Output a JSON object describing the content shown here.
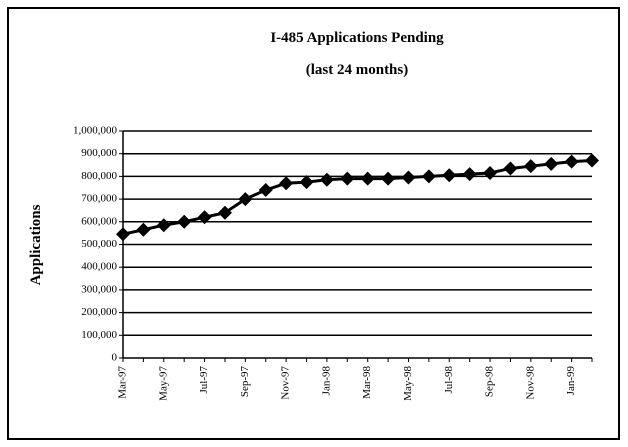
{
  "chart_data": {
    "type": "line",
    "title": "I-485 Applications Pending",
    "subtitle": "(last 24 months)",
    "y_label": "Applications",
    "categories": [
      "Mar-97",
      null,
      "May-97",
      null,
      "Jul-97",
      null,
      "Sep-97",
      null,
      "Nov-97",
      null,
      "Jan-98",
      null,
      "Mar-98",
      null,
      "May-98",
      null,
      "Jul-98",
      null,
      "Sep-98",
      null,
      "Nov-98",
      null,
      "Jan-99",
      null
    ],
    "series": [
      {
        "name": "Applications",
        "color": "#000000",
        "values": [
          545000,
          565000,
          585000,
          600000,
          620000,
          640000,
          700000,
          740000,
          770000,
          775000,
          785000,
          790000,
          790000,
          790000,
          795000,
          800000,
          805000,
          810000,
          815000,
          835000,
          845000,
          855000,
          865000,
          870000
        ]
      }
    ],
    "ylim": [
      0,
      1000000
    ],
    "yticks": [
      0,
      {
        "value": 100000,
        "label": "100,000"
      },
      {
        "value": 200000,
        "label": "200,000"
      },
      {
        "value": 300000,
        "label": "300,000"
      },
      {
        "value": 400000,
        "label": "400,000"
      },
      {
        "value": 500000,
        "label": "500,000"
      },
      {
        "value": 600000,
        "label": "600,000"
      },
      {
        "value": 700000,
        "label": "700,000"
      },
      {
        "value": 800000,
        "label": "800,000"
      },
      {
        "value": 900000,
        "label": "900,000"
      },
      {
        "value": 1000000,
        "label": "1,000,000"
      }
    ],
    "grid": true
  }
}
